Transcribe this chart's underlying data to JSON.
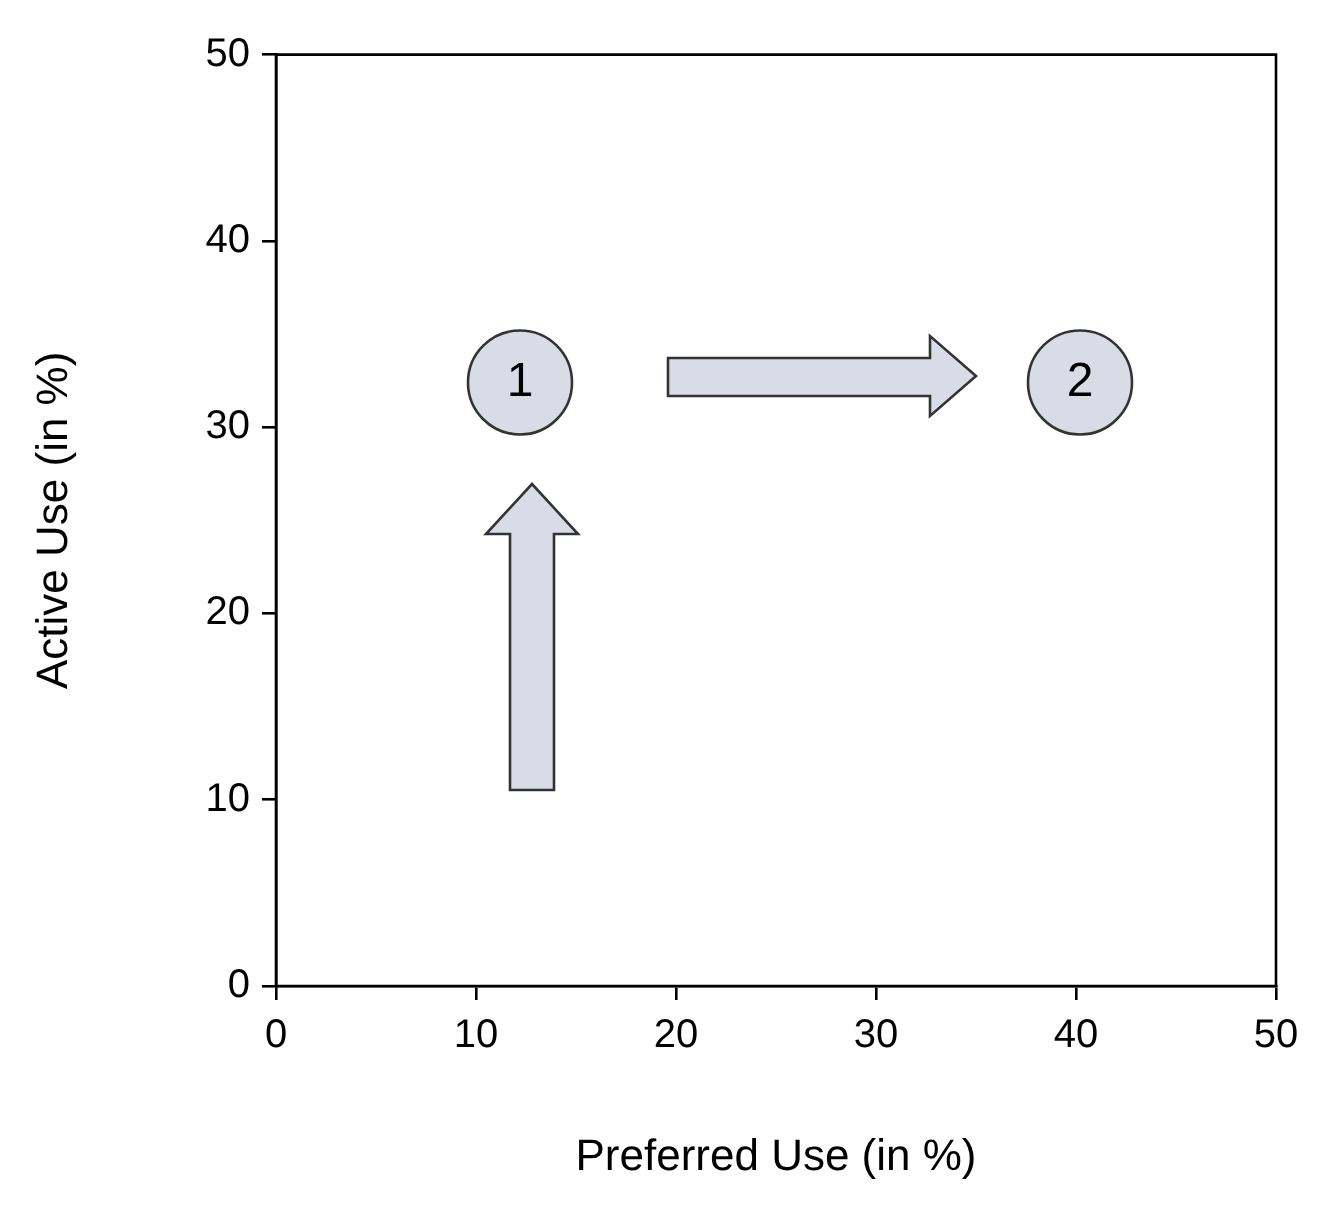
{
  "chart_data": {
    "type": "scatter",
    "xlabel": "Preferred Use (in %)",
    "ylabel": "Active Use (in %)",
    "x": [
      12.2,
      40.2
    ],
    "values": [
      32.4,
      32.4
    ],
    "color": "#d9dce6",
    "marker": "circle",
    "xlim": [
      0,
      50
    ],
    "ylim": [
      0,
      50
    ],
    "xticks": [
      0,
      10,
      20,
      30,
      40,
      50
    ],
    "yticks": [
      0,
      10,
      20,
      30,
      40,
      50
    ],
    "grid": false,
    "legend": false,
    "annotations": [
      {
        "text": "1",
        "x": 12.2,
        "y": 32.4
      },
      {
        "text": "2",
        "x": 40.2,
        "y": 32.4
      }
    ]
  }
}
